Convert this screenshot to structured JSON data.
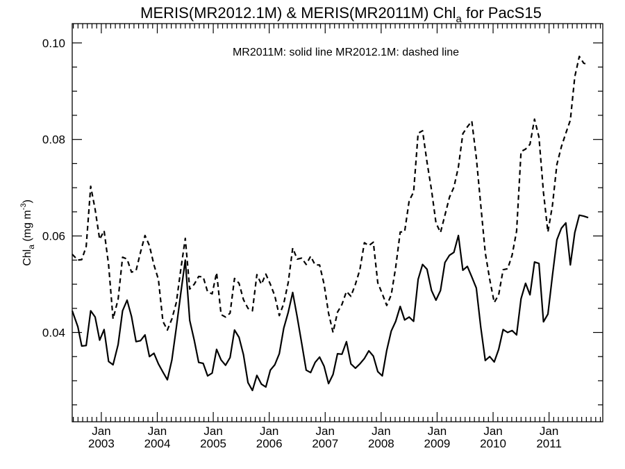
{
  "chart_data": {
    "type": "line",
    "title_main": "MERIS(MR2012.1M) & MERIS(MR2011M)  Chl",
    "title_sub": "a",
    "title_tail": " for PacS15",
    "ylabel_main": "Chl",
    "ylabel_sub": "a",
    "ylabel_units": " (mg m",
    "ylabel_sup": "-3",
    "ylabel_close": ")",
    "annotation": "MR2011M: solid line   MR2012.1M: dashed line",
    "ylim": [
      0.0215,
      0.104
    ],
    "xlim": [
      2002.48,
      2011.96
    ],
    "yticks": [
      {
        "value": 0.04,
        "label": "0.04"
      },
      {
        "value": 0.06,
        "label": "0.06"
      },
      {
        "value": 0.08,
        "label": "0.08"
      },
      {
        "value": 0.1,
        "label": "0.10"
      }
    ],
    "xticks": [
      {
        "value": 2003.0,
        "month": "Jan",
        "year": "2003"
      },
      {
        "value": 2004.0,
        "month": "Jan",
        "year": "2004"
      },
      {
        "value": 2005.0,
        "month": "Jan",
        "year": "2005"
      },
      {
        "value": 2006.0,
        "month": "Jan",
        "year": "2006"
      },
      {
        "value": 2007.0,
        "month": "Jan",
        "year": "2007"
      },
      {
        "value": 2008.0,
        "month": "Jan",
        "year": "2008"
      },
      {
        "value": 2009.0,
        "month": "Jan",
        "year": "2009"
      },
      {
        "value": 2010.0,
        "month": "Jan",
        "year": "2010"
      },
      {
        "value": 2011.0,
        "month": "Jan",
        "year": "2011"
      }
    ],
    "grid": false,
    "series": [
      {
        "name": "MR2011M",
        "style": "solid",
        "color": "#000000",
        "points": [
          [
            2002.48,
            0.0445
          ],
          [
            2002.58,
            0.0412
          ],
          [
            2002.65,
            0.0372
          ],
          [
            2002.73,
            0.0373
          ],
          [
            2002.81,
            0.0445
          ],
          [
            2002.89,
            0.0432
          ],
          [
            2002.97,
            0.0384
          ],
          [
            2003.05,
            0.0406
          ],
          [
            2003.13,
            0.034
          ],
          [
            2003.21,
            0.0333
          ],
          [
            2003.3,
            0.0375
          ],
          [
            2003.38,
            0.0445
          ],
          [
            2003.46,
            0.0467
          ],
          [
            2003.54,
            0.0433
          ],
          [
            2003.62,
            0.0381
          ],
          [
            2003.7,
            0.0383
          ],
          [
            2003.78,
            0.0395
          ],
          [
            2003.86,
            0.035
          ],
          [
            2003.94,
            0.0357
          ],
          [
            2004.02,
            0.0335
          ],
          [
            2004.1,
            0.0318
          ],
          [
            2004.18,
            0.0302
          ],
          [
            2004.26,
            0.0343
          ],
          [
            2004.34,
            0.041
          ],
          [
            2004.42,
            0.0481
          ],
          [
            2004.5,
            0.055
          ],
          [
            2004.58,
            0.0425
          ],
          [
            2004.66,
            0.0384
          ],
          [
            2004.74,
            0.0338
          ],
          [
            2004.82,
            0.0336
          ],
          [
            2004.9,
            0.031
          ],
          [
            2004.98,
            0.0316
          ],
          [
            2005.06,
            0.0365
          ],
          [
            2005.14,
            0.0343
          ],
          [
            2005.22,
            0.0332
          ],
          [
            2005.3,
            0.0348
          ],
          [
            2005.38,
            0.0405
          ],
          [
            2005.46,
            0.039
          ],
          [
            2005.54,
            0.0354
          ],
          [
            2005.62,
            0.0296
          ],
          [
            2005.7,
            0.028
          ],
          [
            2005.78,
            0.0311
          ],
          [
            2005.86,
            0.0293
          ],
          [
            2005.94,
            0.0287
          ],
          [
            2006.02,
            0.0322
          ],
          [
            2006.1,
            0.0333
          ],
          [
            2006.18,
            0.0356
          ],
          [
            2006.26,
            0.0409
          ],
          [
            2006.34,
            0.0442
          ],
          [
            2006.42,
            0.0483
          ],
          [
            2006.5,
            0.0432
          ],
          [
            2006.58,
            0.0378
          ],
          [
            2006.66,
            0.0322
          ],
          [
            2006.74,
            0.0317
          ],
          [
            2006.82,
            0.0338
          ],
          [
            2006.9,
            0.0349
          ],
          [
            2006.98,
            0.033
          ],
          [
            2007.06,
            0.0294
          ],
          [
            2007.14,
            0.0313
          ],
          [
            2007.22,
            0.0356
          ],
          [
            2007.3,
            0.0355
          ],
          [
            2007.38,
            0.0381
          ],
          [
            2007.46,
            0.0335
          ],
          [
            2007.54,
            0.0326
          ],
          [
            2007.62,
            0.0335
          ],
          [
            2007.7,
            0.0346
          ],
          [
            2007.78,
            0.0362
          ],
          [
            2007.86,
            0.0351
          ],
          [
            2007.94,
            0.0319
          ],
          [
            2008.02,
            0.031
          ],
          [
            2008.1,
            0.0363
          ],
          [
            2008.18,
            0.0403
          ],
          [
            2008.26,
            0.0423
          ],
          [
            2008.34,
            0.0454
          ],
          [
            2008.42,
            0.0426
          ],
          [
            2008.5,
            0.0432
          ],
          [
            2008.58,
            0.0423
          ],
          [
            2008.66,
            0.051
          ],
          [
            2008.74,
            0.0541
          ],
          [
            2008.82,
            0.0531
          ],
          [
            2008.9,
            0.0487
          ],
          [
            2008.98,
            0.0467
          ],
          [
            2009.06,
            0.0487
          ],
          [
            2009.14,
            0.0545
          ],
          [
            2009.22,
            0.056
          ],
          [
            2009.3,
            0.0566
          ],
          [
            2009.38,
            0.0601
          ],
          [
            2009.46,
            0.0529
          ],
          [
            2009.54,
            0.0537
          ],
          [
            2009.62,
            0.0515
          ],
          [
            2009.7,
            0.0492
          ],
          [
            2009.78,
            0.0411
          ],
          [
            2009.86,
            0.0342
          ],
          [
            2009.94,
            0.035
          ],
          [
            2010.02,
            0.0339
          ],
          [
            2010.1,
            0.0365
          ],
          [
            2010.18,
            0.0406
          ],
          [
            2010.26,
            0.04
          ],
          [
            2010.34,
            0.0404
          ],
          [
            2010.42,
            0.0395
          ],
          [
            2010.5,
            0.047
          ],
          [
            2010.58,
            0.0502
          ],
          [
            2010.66,
            0.0478
          ],
          [
            2010.74,
            0.0546
          ],
          [
            2010.82,
            0.0543
          ],
          [
            2010.9,
            0.0422
          ],
          [
            2010.98,
            0.0438
          ],
          [
            2011.06,
            0.0518
          ],
          [
            2011.14,
            0.0592
          ],
          [
            2011.22,
            0.0616
          ],
          [
            2011.3,
            0.0627
          ],
          [
            2011.38,
            0.054
          ],
          [
            2011.46,
            0.0607
          ],
          [
            2011.54,
            0.0643
          ],
          [
            2011.62,
            0.0641
          ],
          [
            2011.7,
            0.0638
          ]
        ]
      },
      {
        "name": "MR2012.1M",
        "style": "dashed",
        "color": "#000000",
        "points": [
          [
            2002.48,
            0.0562
          ],
          [
            2002.58,
            0.055
          ],
          [
            2002.65,
            0.0551
          ],
          [
            2002.73,
            0.0578
          ],
          [
            2002.81,
            0.0703
          ],
          [
            2002.89,
            0.0655
          ],
          [
            2002.97,
            0.0593
          ],
          [
            2003.05,
            0.0611
          ],
          [
            2003.13,
            0.054
          ],
          [
            2003.21,
            0.0428
          ],
          [
            2003.3,
            0.0469
          ],
          [
            2003.38,
            0.0556
          ],
          [
            2003.46,
            0.0552
          ],
          [
            2003.54,
            0.0525
          ],
          [
            2003.62,
            0.0528
          ],
          [
            2003.7,
            0.0566
          ],
          [
            2003.78,
            0.0601
          ],
          [
            2003.86,
            0.058
          ],
          [
            2003.94,
            0.054
          ],
          [
            2004.02,
            0.051
          ],
          [
            2004.1,
            0.0423
          ],
          [
            2004.18,
            0.0405
          ],
          [
            2004.26,
            0.0428
          ],
          [
            2004.34,
            0.0462
          ],
          [
            2004.42,
            0.053
          ],
          [
            2004.5,
            0.0595
          ],
          [
            2004.58,
            0.049
          ],
          [
            2004.66,
            0.05
          ],
          [
            2004.74,
            0.0516
          ],
          [
            2004.82,
            0.0515
          ],
          [
            2004.9,
            0.0484
          ],
          [
            2004.98,
            0.048
          ],
          [
            2005.06,
            0.0524
          ],
          [
            2005.14,
            0.0437
          ],
          [
            2005.22,
            0.0432
          ],
          [
            2005.3,
            0.044
          ],
          [
            2005.38,
            0.0512
          ],
          [
            2005.46,
            0.0502
          ],
          [
            2005.54,
            0.0468
          ],
          [
            2005.62,
            0.045
          ],
          [
            2005.7,
            0.0445
          ],
          [
            2005.78,
            0.052
          ],
          [
            2005.86,
            0.05
          ],
          [
            2005.94,
            0.0521
          ],
          [
            2006.02,
            0.05
          ],
          [
            2006.1,
            0.0476
          ],
          [
            2006.18,
            0.0435
          ],
          [
            2006.26,
            0.046
          ],
          [
            2006.34,
            0.0504
          ],
          [
            2006.42,
            0.0575
          ],
          [
            2006.5,
            0.0552
          ],
          [
            2006.58,
            0.0554
          ],
          [
            2006.66,
            0.0541
          ],
          [
            2006.74,
            0.0558
          ],
          [
            2006.82,
            0.054
          ],
          [
            2006.9,
            0.054
          ],
          [
            2006.98,
            0.05
          ],
          [
            2007.06,
            0.044
          ],
          [
            2007.14,
            0.04
          ],
          [
            2007.22,
            0.0442
          ],
          [
            2007.3,
            0.0458
          ],
          [
            2007.38,
            0.0485
          ],
          [
            2007.46,
            0.0475
          ],
          [
            2007.54,
            0.05
          ],
          [
            2007.62,
            0.053
          ],
          [
            2007.7,
            0.0586
          ],
          [
            2007.78,
            0.058
          ],
          [
            2007.86,
            0.0587
          ],
          [
            2007.94,
            0.0503
          ],
          [
            2008.02,
            0.048
          ],
          [
            2008.1,
            0.0456
          ],
          [
            2008.18,
            0.0478
          ],
          [
            2008.26,
            0.0535
          ],
          [
            2008.34,
            0.0608
          ],
          [
            2008.42,
            0.0609
          ],
          [
            2008.5,
            0.0673
          ],
          [
            2008.58,
            0.0691
          ],
          [
            2008.66,
            0.0813
          ],
          [
            2008.74,
            0.0818
          ],
          [
            2008.82,
            0.0753
          ],
          [
            2008.9,
            0.0695
          ],
          [
            2008.98,
            0.0627
          ],
          [
            2009.06,
            0.0607
          ],
          [
            2009.14,
            0.0643
          ],
          [
            2009.22,
            0.068
          ],
          [
            2009.3,
            0.0701
          ],
          [
            2009.38,
            0.0743
          ],
          [
            2009.46,
            0.0812
          ],
          [
            2009.54,
            0.0826
          ],
          [
            2009.62,
            0.0838
          ],
          [
            2009.7,
            0.0762
          ],
          [
            2009.78,
            0.0664
          ],
          [
            2009.86,
            0.0565
          ],
          [
            2009.94,
            0.051
          ],
          [
            2010.02,
            0.0462
          ],
          [
            2010.1,
            0.0478
          ],
          [
            2010.18,
            0.053
          ],
          [
            2010.26,
            0.0532
          ],
          [
            2010.34,
            0.056
          ],
          [
            2010.42,
            0.061
          ],
          [
            2010.5,
            0.0775
          ],
          [
            2010.58,
            0.078
          ],
          [
            2010.66,
            0.079
          ],
          [
            2010.74,
            0.0842
          ],
          [
            2010.82,
            0.0805
          ],
          [
            2010.9,
            0.069
          ],
          [
            2010.98,
            0.0608
          ],
          [
            2011.06,
            0.0663
          ],
          [
            2011.14,
            0.0748
          ],
          [
            2011.22,
            0.0785
          ],
          [
            2011.3,
            0.0813
          ],
          [
            2011.38,
            0.084
          ],
          [
            2011.46,
            0.093
          ],
          [
            2011.54,
            0.0972
          ],
          [
            2011.62,
            0.0958
          ],
          [
            2011.7,
            0.0955
          ]
        ]
      }
    ]
  }
}
